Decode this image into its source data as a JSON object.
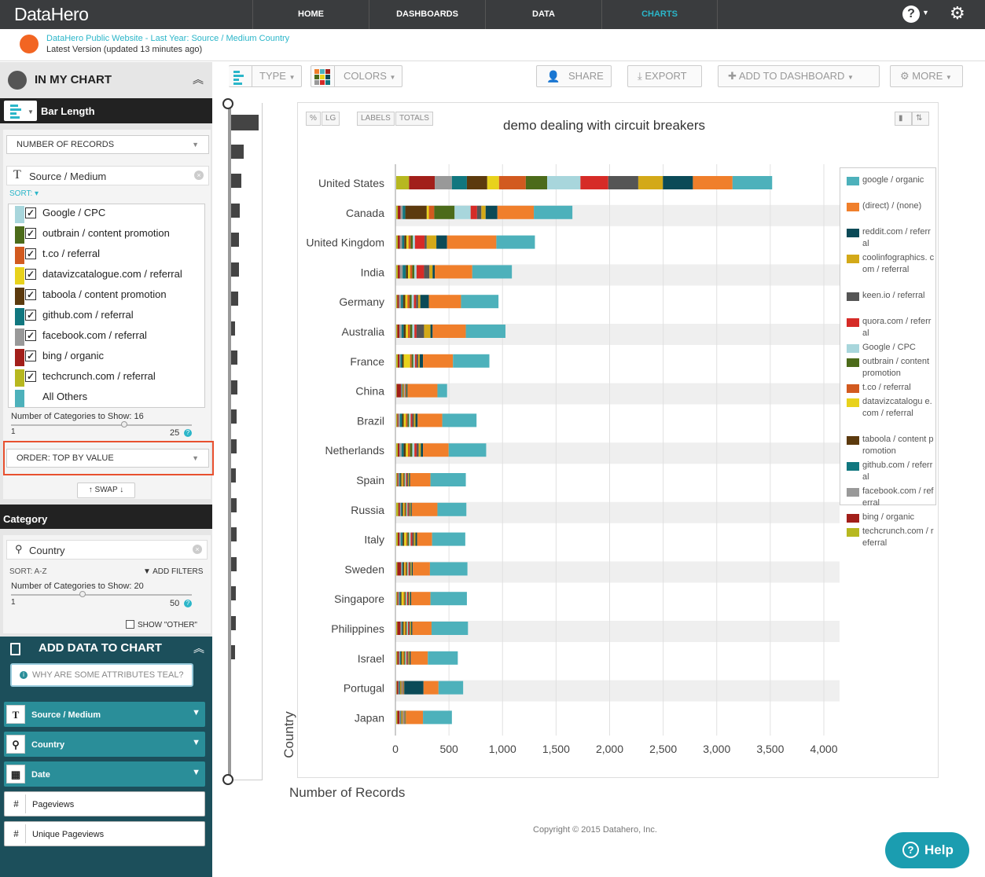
{
  "nav": {
    "logo": "DataHero",
    "tabs": [
      "HOME",
      "DASHBOARDS",
      "DATA",
      "CHARTS"
    ],
    "active_tab": "CHARTS"
  },
  "subheader": {
    "title": "DataHero Public Website - Last Year: Source / Medium Country",
    "version": "Latest Version (updated 13 minutes ago)"
  },
  "left": {
    "in_my_chart": "IN MY CHART",
    "bar_length": "Bar Length",
    "number_select": "NUMBER OF RECORDS",
    "source_chip": "Source / Medium",
    "sort_label": "SORT:",
    "series_items": [
      {
        "label": "Google / CPC",
        "color": "#a8d6dc"
      },
      {
        "label": "outbrain / content promotion",
        "color": "#4c6b1a"
      },
      {
        "label": "t.co / referral",
        "color": "#d25a1f"
      },
      {
        "label": "datavizcatalogue.com / referral",
        "color": "#e8d21c"
      },
      {
        "label": "taboola / content promotion",
        "color": "#5c3a0e"
      },
      {
        "label": "github.com / referral",
        "color": "#11777f"
      },
      {
        "label": "facebook.com / referral",
        "color": "#999999"
      },
      {
        "label": "bing / organic",
        "color": "#a21f1a"
      },
      {
        "label": "techcrunch.com / referral",
        "color": "#b7b820"
      },
      {
        "label": "All Others",
        "color": "#4db1bb"
      }
    ],
    "num_categories_1": "Number of Categories to Show: 16",
    "slider1_min": "1",
    "slider1_max": "25",
    "order_select": "ORDER: TOP BY VALUE",
    "swap": "SWAP",
    "category": "Category",
    "country_chip": "Country",
    "sort2": "SORT: A-Z",
    "add_filters": "ADD FILTERS",
    "num_categories_2": "Number of Categories to Show: 20",
    "slider2_min": "1",
    "slider2_max": "50",
    "show_other": "SHOW \"OTHER\"",
    "add_data_title": "ADD DATA TO CHART",
    "why_teal": "WHY ARE SOME ATTRIBUTES TEAL?",
    "attributes": [
      {
        "label": "Source / Medium",
        "icon": "T",
        "teal": true
      },
      {
        "label": "Country",
        "icon": "pin",
        "teal": true
      },
      {
        "label": "Date",
        "icon": "cal",
        "teal": true
      },
      {
        "label": "Pageviews",
        "icon": "#",
        "teal": false
      },
      {
        "label": "Unique Pageviews",
        "icon": "#",
        "teal": false
      }
    ]
  },
  "toolbar": {
    "type": "TYPE",
    "colors": "COLORS",
    "share": "SHARE",
    "export": "EXPORT",
    "add_to_dashboard": "ADD TO DASHBOARD",
    "more": "MORE"
  },
  "chart_buttons": {
    "pct": "%",
    "lg": "LG",
    "labels": "LABELS",
    "totals": "TOTALS"
  },
  "chart_data": {
    "type": "bar",
    "orientation": "horizontal",
    "stacked": true,
    "title": "demo dealing with circuit breakers",
    "xlabel": "Number of Records",
    "ylabel": "Country",
    "xlim": [
      0,
      4000
    ],
    "xticks": [
      "0",
      "500",
      "1,000",
      "1,500",
      "2,000",
      "2,500",
      "3,000",
      "3,500",
      "4,000"
    ],
    "categories": [
      "United States",
      "Canada",
      "United Kingdom",
      "India",
      "Germany",
      "Australia",
      "France",
      "China",
      "Brazil",
      "Netherlands",
      "Spain",
      "Russia",
      "Italy",
      "Sweden",
      "Singapore",
      "Philippines",
      "Israel",
      "Portugal",
      "Japan"
    ],
    "series": [
      {
        "name": "techcrunch.com / referral",
        "color": "#b7b820",
        "values": [
          120,
          15,
          15,
          15,
          10,
          10,
          15,
          5,
          10,
          15,
          10,
          20,
          15,
          10,
          10,
          10,
          10,
          5,
          10
        ]
      },
      {
        "name": "bing / organic",
        "color": "#a21f1a",
        "values": [
          240,
          25,
          20,
          20,
          15,
          20,
          15,
          40,
          10,
          15,
          10,
          15,
          15,
          35,
          10,
          30,
          15,
          15,
          20
        ]
      },
      {
        "name": "facebook.com / referral",
        "color": "#999999",
        "values": [
          160,
          20,
          20,
          25,
          20,
          20,
          10,
          5,
          15,
          20,
          10,
          10,
          15,
          10,
          10,
          10,
          10,
          5,
          10
        ]
      },
      {
        "name": "github.com / referral",
        "color": "#11777f",
        "values": [
          140,
          25,
          20,
          30,
          20,
          20,
          15,
          5,
          20,
          20,
          10,
          10,
          15,
          10,
          10,
          10,
          10,
          10,
          5
        ]
      },
      {
        "name": "taboola / content promotion",
        "color": "#5c3a0e",
        "values": [
          190,
          200,
          20,
          20,
          20,
          20,
          15,
          5,
          15,
          20,
          10,
          10,
          15,
          10,
          10,
          10,
          10,
          5,
          5
        ]
      },
      {
        "name": "datavizcatalogue.com / referral",
        "color": "#e8d21c",
        "values": [
          110,
          20,
          20,
          20,
          20,
          20,
          60,
          5,
          20,
          20,
          10,
          10,
          20,
          10,
          20,
          10,
          10,
          5,
          5
        ]
      },
      {
        "name": "t.co / referral",
        "color": "#d25a1f",
        "values": [
          250,
          50,
          20,
          20,
          20,
          20,
          15,
          5,
          15,
          20,
          10,
          10,
          10,
          10,
          10,
          10,
          10,
          5,
          5
        ]
      },
      {
        "name": "outbrain / content promotion",
        "color": "#4c6b1a",
        "values": [
          200,
          190,
          20,
          20,
          20,
          20,
          15,
          5,
          15,
          20,
          10,
          10,
          15,
          10,
          10,
          10,
          10,
          5,
          5
        ]
      },
      {
        "name": "Google / CPC",
        "color": "#a8d6dc",
        "values": [
          310,
          150,
          20,
          20,
          20,
          20,
          15,
          5,
          15,
          20,
          10,
          10,
          15,
          10,
          10,
          10,
          10,
          5,
          5
        ]
      },
      {
        "name": "quora.com / referral",
        "color": "#d62b27",
        "values": [
          260,
          60,
          90,
          70,
          20,
          20,
          15,
          5,
          15,
          20,
          10,
          10,
          15,
          10,
          10,
          10,
          10,
          5,
          5
        ]
      },
      {
        "name": "keen.io / referral",
        "color": "#555555",
        "values": [
          280,
          40,
          20,
          50,
          20,
          70,
          15,
          5,
          15,
          20,
          10,
          10,
          15,
          10,
          10,
          10,
          10,
          5,
          5
        ]
      },
      {
        "name": "coolinfographics.com / referral",
        "color": "#d3a918",
        "values": [
          230,
          40,
          90,
          30,
          20,
          60,
          15,
          5,
          15,
          20,
          10,
          10,
          15,
          10,
          10,
          10,
          10,
          5,
          5
        ]
      },
      {
        "name": "reddit.com / referral",
        "color": "#0b4a57",
        "values": [
          280,
          110,
          100,
          20,
          80,
          20,
          30,
          10,
          20,
          20,
          10,
          10,
          15,
          10,
          10,
          10,
          10,
          180,
          5
        ]
      },
      {
        "name": "(direct) / (none)",
        "color": "#f07f2b",
        "values": [
          370,
          340,
          460,
          350,
          300,
          310,
          280,
          280,
          230,
          240,
          190,
          240,
          140,
          160,
          180,
          180,
          160,
          140,
          160
        ]
      },
      {
        "name": "google / organic",
        "color": "#4db1bb",
        "values": [
          370,
          360,
          360,
          370,
          350,
          370,
          340,
          90,
          320,
          350,
          330,
          270,
          310,
          350,
          340,
          340,
          280,
          230,
          270
        ]
      }
    ],
    "legend_position": "right"
  },
  "legend": [
    {
      "label": "google / organic",
      "color": "#4db1bb"
    },
    {
      "label": "(direct) / (none)",
      "color": "#f07f2b"
    },
    {
      "label": "reddit.com / referral",
      "color": "#0b4a57"
    },
    {
      "label": "coolinfographics. com / referral",
      "color": "#d3a918"
    },
    {
      "label": "keen.io / referral",
      "color": "#555555"
    },
    {
      "label": "quora.com / referral",
      "color": "#d62b27"
    },
    {
      "label": "Google / CPC",
      "color": "#a8d6dc"
    },
    {
      "label": "outbrain / content promotion",
      "color": "#4c6b1a"
    },
    {
      "label": "t.co / referral",
      "color": "#d25a1f"
    },
    {
      "label": "datavizcatalogu e.com / referral",
      "color": "#e8d21c"
    },
    {
      "label": "taboola / content promotion",
      "color": "#5c3a0e"
    },
    {
      "label": "github.com / referral",
      "color": "#11777f"
    },
    {
      "label": "facebook.com / referral",
      "color": "#999999"
    },
    {
      "label": "bing / organic",
      "color": "#a21f1a"
    },
    {
      "label": "techcrunch.com / referral",
      "color": "#b7b820"
    }
  ],
  "footer": {
    "copyright": "Copyright © 2015 Datahero, Inc.",
    "help": "Help"
  }
}
